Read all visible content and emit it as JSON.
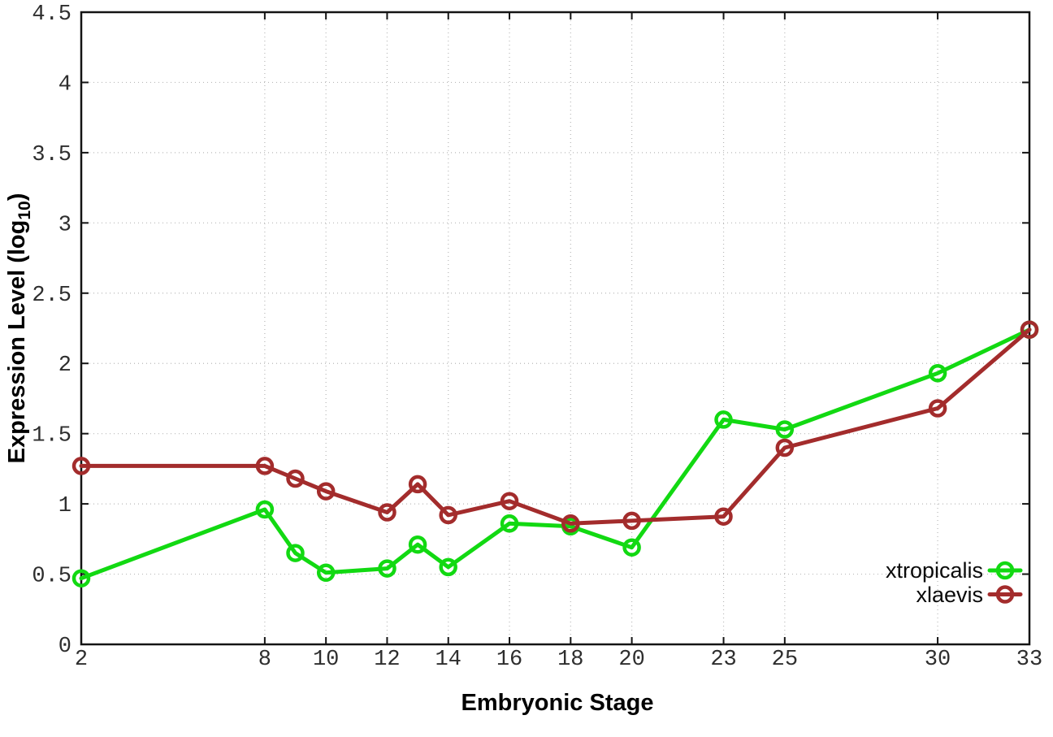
{
  "chart_data": {
    "type": "line",
    "title": "",
    "xlabel": "Embryonic Stage",
    "ylabel": "Expression Level (log10)",
    "ylabel_parts": {
      "main": "Expression Level (log",
      "sub": "10",
      "end": ")"
    },
    "x": [
      2,
      8,
      9,
      10,
      12,
      13,
      14,
      16,
      18,
      20,
      23,
      25,
      30,
      33
    ],
    "xticks": [
      2,
      8,
      10,
      12,
      14,
      16,
      18,
      20,
      23,
      25,
      30,
      33
    ],
    "yticks": [
      0,
      0.5,
      1,
      1.5,
      2,
      2.5,
      3,
      3.5,
      4,
      4.5
    ],
    "xlim": [
      2,
      33
    ],
    "ylim": [
      0,
      4.5
    ],
    "grid": true,
    "legend_position": "bottom-right",
    "series": [
      {
        "name": "xtropicalis",
        "color": "#12d912",
        "marker": "open-circle",
        "values": [
          0.47,
          0.96,
          0.65,
          0.51,
          0.54,
          0.71,
          0.55,
          0.86,
          0.84,
          0.69,
          1.6,
          1.53,
          1.93,
          2.24
        ]
      },
      {
        "name": "xlaevis",
        "color": "#a32c2c",
        "marker": "open-circle",
        "values": [
          1.27,
          1.27,
          1.18,
          1.09,
          0.94,
          1.14,
          0.92,
          1.02,
          0.86,
          0.88,
          0.91,
          1.4,
          1.68,
          2.24
        ]
      }
    ]
  },
  "colors": {
    "background": "#ffffff",
    "border": "#141414",
    "grid": "#b8b8b8",
    "tick_label": "#2e2e2e",
    "series_green": "#12d912",
    "series_red": "#a32c2c"
  }
}
